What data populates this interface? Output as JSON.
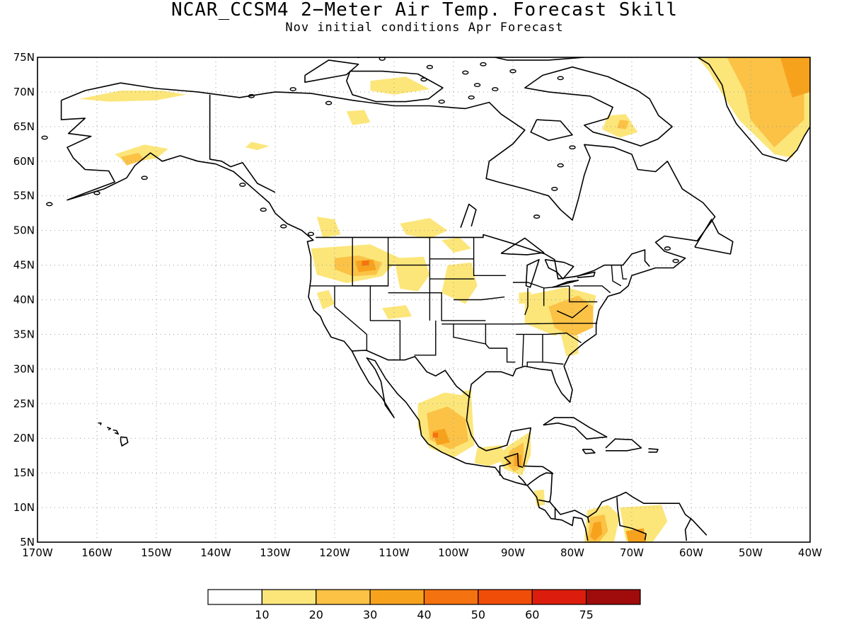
{
  "title": "NCAR_CCSM4 2−Meter Air Temp. Forecast Skill",
  "subtitle": "Nov initial conditions  Apr Forecast",
  "map": {
    "projection": "cylindrical equidistant",
    "lon_range": [
      -170,
      -40
    ],
    "lat_range": [
      5,
      75
    ],
    "grid": "dotted",
    "lon_labels": [
      "170W",
      "160W",
      "150W",
      "140W",
      "130W",
      "120W",
      "110W",
      "100W",
      "90W",
      "80W",
      "70W",
      "60W",
      "50W",
      "40W"
    ],
    "lat_labels": [
      "75N",
      "70N",
      "65N",
      "60N",
      "55N",
      "50N",
      "45N",
      "40N",
      "35N",
      "30N",
      "25N",
      "20N",
      "15N",
      "10N",
      "5N"
    ],
    "skill_regions": [
      {
        "name": "Northern Alaska coast",
        "level": 10
      },
      {
        "name": "South-central Alaska",
        "level": 10
      },
      {
        "name": "Southwest Alaska",
        "level": 20
      },
      {
        "name": "Yukon patch",
        "level": 10
      },
      {
        "name": "Victoria Island",
        "level": 10
      },
      {
        "name": "Banks Island",
        "level": 10
      },
      {
        "name": "Baffin Island",
        "level": 10
      },
      {
        "name": "Baffin Island core",
        "level": 20
      },
      {
        "name": "Greenland",
        "level": 10
      },
      {
        "name": "Greenland interior",
        "level": 20
      },
      {
        "name": "Greenland east",
        "level": 30
      },
      {
        "name": "Southern British Columbia",
        "level": 10
      },
      {
        "name": "Saskatchewan / Montana border",
        "level": 10
      },
      {
        "name": "Pacific Northwest",
        "level": 10
      },
      {
        "name": "Idaho / Oregon",
        "level": 20
      },
      {
        "name": "Idaho core",
        "level": 30
      },
      {
        "name": "Idaho peak",
        "level": 40
      },
      {
        "name": "Wyoming",
        "level": 10
      },
      {
        "name": "Nebraska / South Dakota",
        "level": 10
      },
      {
        "name": "North Dakota",
        "level": 10
      },
      {
        "name": "Northern California",
        "level": 10
      },
      {
        "name": "Utah / Colorado",
        "level": 10
      },
      {
        "name": "Ohio Valley",
        "level": 10
      },
      {
        "name": "Virginia / Carolinas",
        "level": 20
      },
      {
        "name": "Georgia / South Carolina",
        "level": 10
      },
      {
        "name": "Indiana patch",
        "level": 10
      },
      {
        "name": "Southern Texas / Mexico coast",
        "level": 10
      },
      {
        "name": "Central Mexico",
        "level": 10
      },
      {
        "name": "Central Mexico core",
        "level": 20
      },
      {
        "name": "Central Mexico peak",
        "level": 30
      },
      {
        "name": "Central Mexico max",
        "level": 40
      },
      {
        "name": "Southern Mexico",
        "level": 10
      },
      {
        "name": "Yucatan / Guatemala",
        "level": 10
      },
      {
        "name": "Guatemala core",
        "level": 20
      },
      {
        "name": "Guatemala peak",
        "level": 30
      },
      {
        "name": "Nicaragua",
        "level": 10
      },
      {
        "name": "Northwest South America",
        "level": 10
      },
      {
        "name": "Colombia",
        "level": 20
      },
      {
        "name": "Colombia core",
        "level": 30
      },
      {
        "name": "Venezuela",
        "level": 10
      },
      {
        "name": "Venezuela core",
        "level": 30
      }
    ]
  },
  "colorbar": {
    "labels": [
      "10",
      "20",
      "30",
      "40",
      "50",
      "60",
      "75"
    ],
    "colors": [
      "#ffffff",
      "#fce67a",
      "#fbc246",
      "#f7a21d",
      "#f57210",
      "#f04d09",
      "#dc1c0c",
      "#a00c0c"
    ]
  }
}
